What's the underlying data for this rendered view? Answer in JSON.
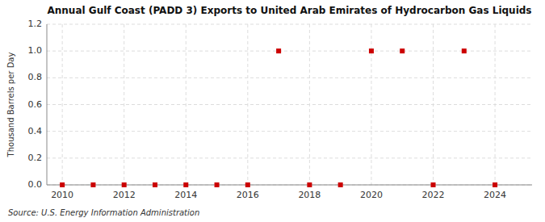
{
  "chart_data": {
    "type": "scatter",
    "title": "Annual Gulf Coast (PADD 3) Exports to United Arab Emirates of Hydrocarbon Gas Liquids",
    "y_label": "Thousand Barrels per Day",
    "source": "Source: U.S. Energy Information Administration",
    "x": [
      2010,
      2011,
      2012,
      2013,
      2014,
      2015,
      2016,
      2017,
      2018,
      2019,
      2020,
      2021,
      2022,
      2023,
      2024
    ],
    "values": [
      0.0,
      0.0,
      0.0,
      0.0,
      0.0,
      0.0,
      0.0,
      1.0,
      0.0,
      0.0,
      1.0,
      1.0,
      0.0,
      1.0,
      0.0
    ],
    "color": "#cc0000",
    "marker": "square",
    "grid": true,
    "xlim": [
      2009.5,
      2025.2
    ],
    "ylim": [
      0.0,
      1.2
    ],
    "xticks": [
      2010,
      2012,
      2014,
      2016,
      2018,
      2020,
      2022,
      2024
    ],
    "yticks": [
      {
        "value": 0.0,
        "label": "0.0"
      },
      0.2,
      0.4,
      0.6,
      0.8,
      {
        "value": 1.0,
        "label": "1.0"
      },
      1.2
    ]
  }
}
